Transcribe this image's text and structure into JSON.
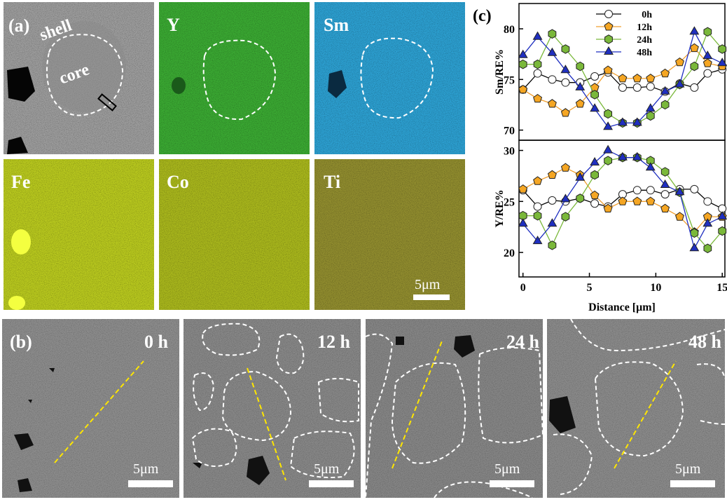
{
  "panel_a": {
    "label": "(a)",
    "shell": "shell",
    "core": "core",
    "maps": [
      "Y",
      "Sm",
      "Fe",
      "Co",
      "Ti"
    ],
    "scale_bar": "5μm"
  },
  "panel_b": {
    "label": "(b)",
    "times": [
      "0 h",
      "12 h",
      "24 h",
      "48 h"
    ],
    "scale_bar": "5μm"
  },
  "panel_c": {
    "label": "(c)"
  },
  "chart_data": [
    {
      "type": "line",
      "ylabel": "Sm/RE%",
      "legend": "upper center",
      "x": [
        0,
        1.1,
        2.2,
        3.2,
        4.3,
        5.4,
        6.4,
        7.5,
        8.6,
        9.6,
        10.7,
        11.8,
        12.9,
        13.9,
        15
      ],
      "xlim": [
        -0.3,
        15.2
      ],
      "ylim": [
        69,
        82.5
      ],
      "yticks": [
        70,
        75,
        80
      ],
      "series": [
        {
          "name": "0h",
          "color": "#000000",
          "marker": "circle",
          "marker_fill": "#ffffff",
          "values": [
            74,
            75.6,
            75,
            74.7,
            74.7,
            75.3,
            75.7,
            74.2,
            74.2,
            74.3,
            73.8,
            74.6,
            74.2,
            75.6,
            76
          ]
        },
        {
          "name": "12h",
          "color": "#f0a030",
          "marker": "pentagon",
          "marker_fill": "#f5a623",
          "values": [
            74,
            73.1,
            72.6,
            71.7,
            72.6,
            74.2,
            75.9,
            75.1,
            75.1,
            75.1,
            75.6,
            76.7,
            78.1,
            76.6,
            76.3
          ]
        },
        {
          "name": "24h",
          "color": "#7ab83a",
          "marker": "hexagon",
          "marker_fill": "#7ab83a",
          "values": [
            76.5,
            76.5,
            79.5,
            78,
            76.3,
            73.5,
            71.6,
            70.7,
            70.7,
            71.4,
            72.5,
            74.5,
            76.3,
            79.7,
            78
          ]
        },
        {
          "name": "48h",
          "color": "#1f2fc0",
          "marker": "triangle",
          "marker_fill": "#1f2fc0",
          "values": [
            77.4,
            79.2,
            77.6,
            75.9,
            74.2,
            72.1,
            70.3,
            70.7,
            70.7,
            72.1,
            73.8,
            74.5,
            79.7,
            77.3,
            76.6
          ]
        }
      ]
    },
    {
      "type": "line",
      "ylabel": "Y/RE%",
      "xlabel": "Distance [μm]",
      "x": [
        0,
        1.1,
        2.2,
        3.2,
        4.3,
        5.4,
        6.4,
        7.5,
        8.6,
        9.6,
        10.7,
        11.8,
        12.9,
        13.9,
        15
      ],
      "xlim": [
        -0.3,
        15.2
      ],
      "xticks": [
        0,
        5,
        10,
        15
      ],
      "ylim": [
        17.6,
        31
      ],
      "yticks": [
        20,
        25,
        30
      ],
      "series": [
        {
          "color": "#000000",
          "marker": "circle",
          "marker_fill": "#ffffff",
          "values": [
            26.1,
            24.5,
            25.1,
            25,
            25.3,
            24.8,
            24.5,
            25.7,
            26.1,
            26.1,
            25.7,
            26.2,
            26.2,
            25,
            24.3
          ]
        },
        {
          "color": "#f0a030",
          "marker": "pentagon",
          "marker_fill": "#f5a623",
          "values": [
            26.2,
            27,
            27.6,
            28.3,
            27.6,
            25.6,
            24.3,
            25,
            25,
            25,
            24.3,
            23.5,
            22,
            23.5,
            23.5
          ]
        },
        {
          "color": "#7ab83a",
          "marker": "hexagon",
          "marker_fill": "#7ab83a",
          "values": [
            23.6,
            23.6,
            20.7,
            23.5,
            25.3,
            27.6,
            29,
            29.3,
            29.3,
            29,
            27.9,
            25.9,
            21.9,
            20.4,
            22.1
          ]
        },
        {
          "color": "#1f2fc0",
          "marker": "triangle",
          "marker_fill": "#1f2fc0",
          "values": [
            22.8,
            21.1,
            22.8,
            25.2,
            27.3,
            28.8,
            30,
            29.3,
            29.3,
            28.3,
            26.6,
            25.9,
            20.4,
            22.8,
            23.5
          ]
        }
      ]
    }
  ]
}
